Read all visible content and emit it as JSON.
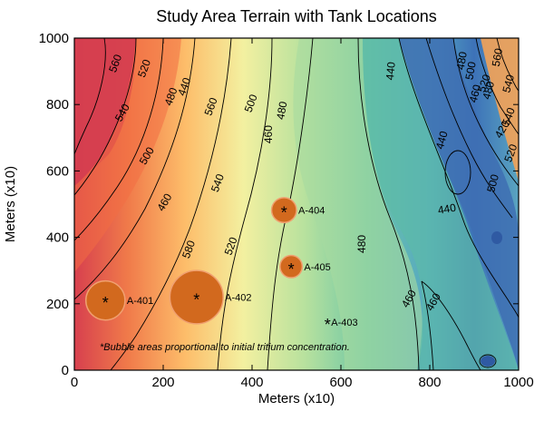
{
  "chart_data": {
    "type": "scatter",
    "title": "Study Area Terrain with Tank Locations",
    "xlabel": "Meters (x10)",
    "ylabel": "Meters (x10)",
    "xlim": [
      0,
      1000
    ],
    "ylim": [
      0,
      1000
    ],
    "xticks": [
      "0",
      "200",
      "400",
      "600",
      "800",
      "1000"
    ],
    "yticks": [
      "0",
      "200",
      "400",
      "600",
      "800",
      "1000"
    ],
    "background": "filled terrain elevation contours",
    "contour_labels": [
      "560",
      "540",
      "520",
      "500",
      "480",
      "460",
      "440",
      "580",
      "560",
      "540",
      "520",
      "500",
      "480",
      "460",
      "460",
      "480",
      "460",
      "460",
      "440",
      "440",
      "420",
      "440",
      "460",
      "480",
      "500",
      "520",
      "540",
      "560",
      "540",
      "520",
      "500",
      "480"
    ],
    "tanks": [
      {
        "name": "A-401",
        "x": 70,
        "y": 210,
        "r": 88
      },
      {
        "name": "A-402",
        "x": 275,
        "y": 220,
        "r": 120
      },
      {
        "name": "A-404",
        "x": 472,
        "y": 482,
        "r": 56
      },
      {
        "name": "A-405",
        "x": 488,
        "y": 312,
        "r": 50
      },
      {
        "name": "A-403",
        "x": 570,
        "y": 145,
        "r": 0
      }
    ],
    "annotation": "*Bubble areas proportional to initial tritium concentration.",
    "colors": {
      "bubble": "#d2691e",
      "bubble_stroke": "#f0a070",
      "high": "#d53e4f",
      "low": "#3b6ab5",
      "mid": "#b8e3a0"
    }
  }
}
